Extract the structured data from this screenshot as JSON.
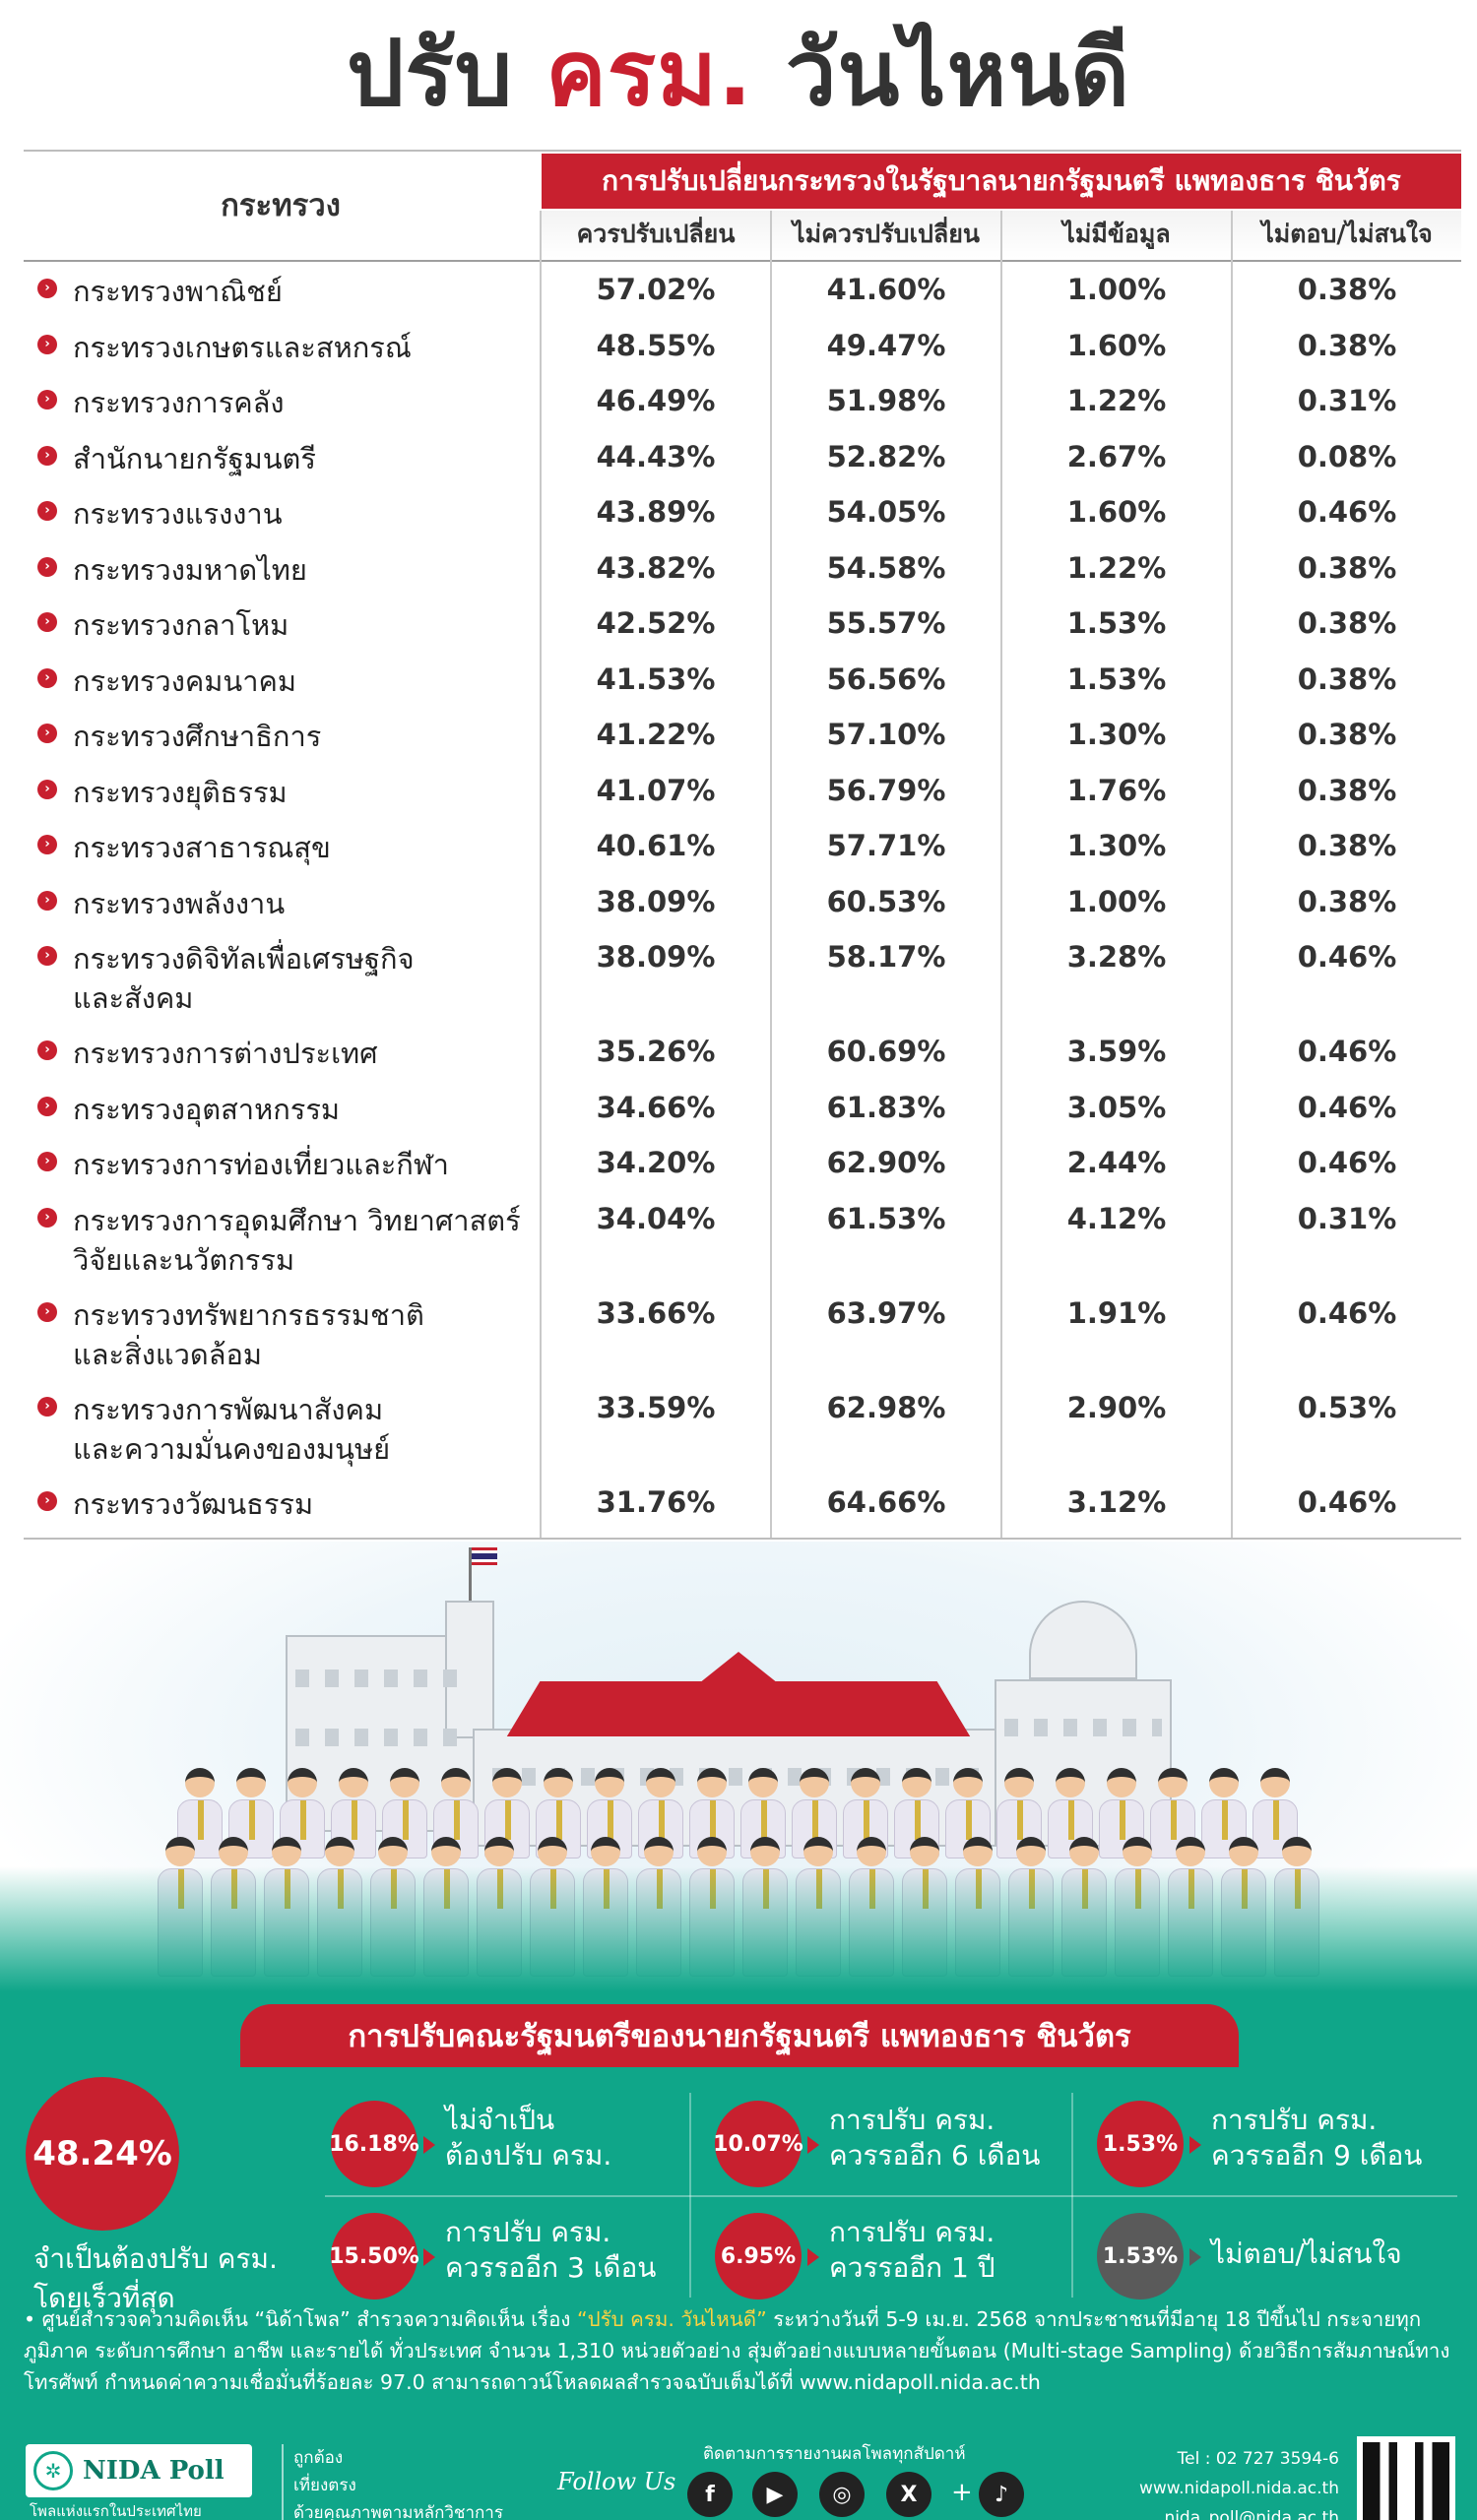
{
  "title": {
    "part1": "ปรับ",
    "part2": "ครม.",
    "part3": "วันไหนดี"
  },
  "table": {
    "header_ministry": "กระทรวง",
    "header_band": "การปรับเปลี่ยนกระทรวงในรัฐบาลนายกรัฐมนตรี แพทองธาร ชินวัตร",
    "columns": [
      "ควรปรับเปลี่ยน",
      "ไม่ควรปรับเปลี่ยน",
      "ไม่มีข้อมูล",
      "ไม่ตอบ/ไม่สนใจ"
    ],
    "rows": [
      {
        "name": "กระทรวงพาณิชย์",
        "values": [
          "57.02%",
          "41.60%",
          "1.00%",
          "0.38%"
        ]
      },
      {
        "name": "กระทรวงเกษตรและสหกรณ์",
        "values": [
          "48.55%",
          "49.47%",
          "1.60%",
          "0.38%"
        ]
      },
      {
        "name": "กระทรวงการคลัง",
        "values": [
          "46.49%",
          "51.98%",
          "1.22%",
          "0.31%"
        ]
      },
      {
        "name": "สำนักนายกรัฐมนตรี",
        "values": [
          "44.43%",
          "52.82%",
          "2.67%",
          "0.08%"
        ]
      },
      {
        "name": "กระทรวงแรงงาน",
        "values": [
          "43.89%",
          "54.05%",
          "1.60%",
          "0.46%"
        ]
      },
      {
        "name": "กระทรวงมหาดไทย",
        "values": [
          "43.82%",
          "54.58%",
          "1.22%",
          "0.38%"
        ]
      },
      {
        "name": "กระทรวงกลาโหม",
        "values": [
          "42.52%",
          "55.57%",
          "1.53%",
          "0.38%"
        ]
      },
      {
        "name": "กระทรวงคมนาคม",
        "values": [
          "41.53%",
          "56.56%",
          "1.53%",
          "0.38%"
        ]
      },
      {
        "name": "กระทรวงศึกษาธิการ",
        "values": [
          "41.22%",
          "57.10%",
          "1.30%",
          "0.38%"
        ]
      },
      {
        "name": "กระทรวงยุติธรรม",
        "values": [
          "41.07%",
          "56.79%",
          "1.76%",
          "0.38%"
        ]
      },
      {
        "name": "กระทรวงสาธารณสุข",
        "values": [
          "40.61%",
          "57.71%",
          "1.30%",
          "0.38%"
        ]
      },
      {
        "name": "กระทรวงพลังงาน",
        "values": [
          "38.09%",
          "60.53%",
          "1.00%",
          "0.38%"
        ]
      },
      {
        "name": "กระทรวงดิจิทัลเพื่อเศรษฐกิจ\nและสังคม",
        "values": [
          "38.09%",
          "58.17%",
          "3.28%",
          "0.46%"
        ]
      },
      {
        "name": "กระทรวงการต่างประเทศ",
        "values": [
          "35.26%",
          "60.69%",
          "3.59%",
          "0.46%"
        ]
      },
      {
        "name": "กระทรวงอุตสาหกรรม",
        "values": [
          "34.66%",
          "61.83%",
          "3.05%",
          "0.46%"
        ]
      },
      {
        "name": "กระทรวงการท่องเที่ยวและกีฬา",
        "values": [
          "34.20%",
          "62.90%",
          "2.44%",
          "0.46%"
        ]
      },
      {
        "name": "กระทรวงการอุดมศึกษา วิทยาศาสตร์\nวิจัยและนวัตกรรม",
        "values": [
          "34.04%",
          "61.53%",
          "4.12%",
          "0.31%"
        ]
      },
      {
        "name": "กระทรวงทรัพยากรธรรมชาติ\nและสิ่งแวดล้อม",
        "values": [
          "33.66%",
          "63.97%",
          "1.91%",
          "0.46%"
        ]
      },
      {
        "name": "กระทรวงการพัฒนาสังคม\nและความมั่นคงของมนุษย์",
        "values": [
          "33.59%",
          "62.98%",
          "2.90%",
          "0.53%"
        ]
      },
      {
        "name": "กระทรวงวัฒนธรรม",
        "values": [
          "31.76%",
          "64.66%",
          "3.12%",
          "0.46%"
        ]
      }
    ]
  },
  "summary": {
    "banner": "การปรับคณะรัฐมนตรีของนายกรัฐมนตรี แพทองธาร ชินวัตร",
    "main_value": "48.24%",
    "main_label": "จำเป็นต้องปรับ ครม.\nโดยเร็วที่สุด",
    "options": [
      {
        "value": "16.18%",
        "label": "ไม่จำเป็น\nต้องปรับ ครม."
      },
      {
        "value": "10.07%",
        "label": "การปรับ ครม.\nควรรออีก 6 เดือน"
      },
      {
        "value": "1.53%",
        "label": "การปรับ ครม.\nควรรออีก 9 เดือน"
      },
      {
        "value": "15.50%",
        "label": "การปรับ ครม.\nควรรออีก 3 เดือน"
      },
      {
        "value": "6.95%",
        "label": "การปรับ ครม.\nควรรออีก 1 ปี"
      },
      {
        "value": "1.53%",
        "label": "ไม่ตอบ/ไม่สนใจ"
      }
    ],
    "note_a": "• ศูนย์สำรวจความคิดเห็น “นิด้าโพล” สำรวจความคิดเห็น เรื่อง ",
    "note_quote": "“ปรับ ครม. วันไหนดี”",
    "note_b": " ระหว่างวันที่ 5-9 เม.ย. 2568 จากประชาชนที่มีอายุ 18 ปีขึ้นไป กระจายทุกภูมิภาค ระดับการศึกษา อาชีพ และรายได้ ทั่วประเทศ จำนวน 1,310 หน่วยตัวอย่าง สุ่มตัวอย่างแบบหลายขั้นตอน (Multi-stage Sampling) ด้วยวิธีการสัมภาษณ์ทางโทรศัพท์ กำหนดค่าความเชื่อมั่นที่ร้อยละ 97.0 สามารถดาวน์โหลดผลสำรวจฉบับเต็มได้ที่ www.nidapoll.nida.ac.th"
  },
  "footer": {
    "logo_text": "NIDA Poll",
    "logo_sub": "โพลแห่งแรกในประเทศไทย",
    "tags": [
      "ถูกต้อง",
      "เที่ยงตรง",
      "ด้วยคุณภาพตามหลักวิชาการ"
    ],
    "follow": "Follow Us",
    "track": "ติดตามการรายงานผลโพลทุกสัปดาห์",
    "social": [
      "f",
      "▶",
      "◎",
      "X",
      "♪"
    ],
    "tel": "Tel : 02 727 3594-6",
    "web": "www.nidapoll.nida.ac.th",
    "email": "nida_poll@nida.ac.th"
  },
  "colors": {
    "accent": "#c8202f",
    "green": "#0fa689",
    "text": "#333333"
  },
  "icons": [
    "bullet-arrow-icon",
    "facebook-icon",
    "youtube-icon",
    "instagram-icon",
    "x-icon",
    "tiktok-icon",
    "qr-code-icon",
    "nida-emblem-icon"
  ]
}
